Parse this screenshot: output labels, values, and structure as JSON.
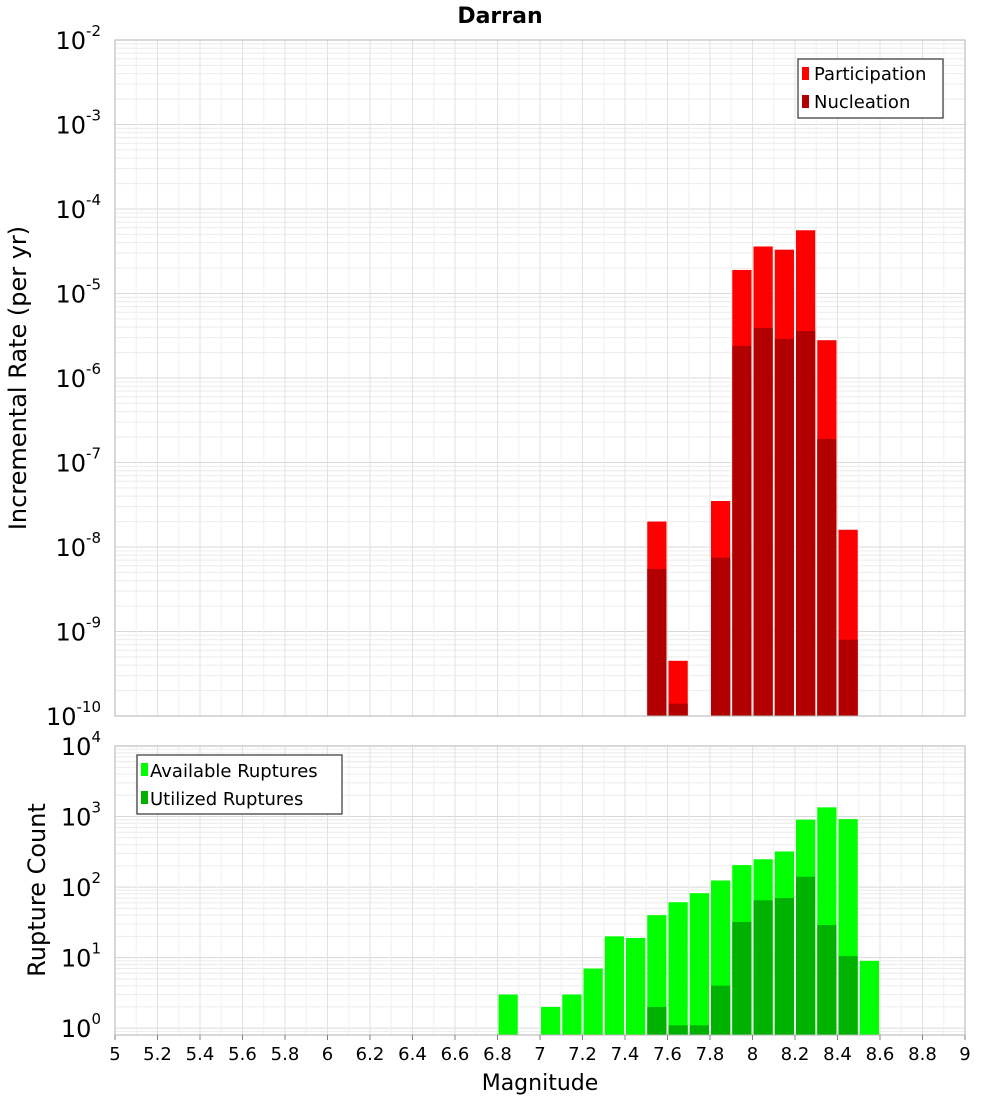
{
  "chart_data": [
    {
      "type": "bar",
      "title": "Darran",
      "ylabel": "Incremental Rate (per yr)",
      "xlabel": "",
      "yscale": "log",
      "ylim": [
        1e-10,
        0.01
      ],
      "xlim": [
        5,
        9
      ],
      "grid": true,
      "legend_position": "top-right",
      "y_ticks": [
        {
          "base": "10",
          "exp": "-2"
        },
        {
          "base": "10",
          "exp": "-3"
        },
        {
          "base": "10",
          "exp": "-4"
        },
        {
          "base": "10",
          "exp": "-5"
        },
        {
          "base": "10",
          "exp": "-6"
        },
        {
          "base": "10",
          "exp": "-7"
        },
        {
          "base": "10",
          "exp": "-8"
        },
        {
          "base": "10",
          "exp": "-9"
        },
        {
          "base": "10",
          "exp": "-10"
        }
      ],
      "bin_centers": [
        7.55,
        7.65,
        7.75,
        7.85,
        7.95,
        8.05,
        8.15,
        8.25,
        8.35,
        8.45
      ],
      "series": [
        {
          "name": "Participation",
          "color": "#ff0000",
          "values": [
            2e-08,
            4.5e-10,
            null,
            3.5e-08,
            1.9e-05,
            3.6e-05,
            3.3e-05,
            5.6e-05,
            2.8e-06,
            1.6e-08
          ]
        },
        {
          "name": "Nucleation",
          "color": "#b20000",
          "values": [
            5.5e-09,
            1.4e-10,
            null,
            7.5e-09,
            2.4e-06,
            3.9e-06,
            2.9e-06,
            3.6e-06,
            1.9e-07,
            8e-10
          ]
        }
      ]
    },
    {
      "type": "bar",
      "title": "",
      "ylabel": "Rupture Count",
      "xlabel": "Magnitude",
      "yscale": "log",
      "ylim": [
        0.8,
        10000
      ],
      "xlim": [
        5,
        9
      ],
      "grid": true,
      "legend_position": "top-left",
      "y_ticks": [
        {
          "base": "10",
          "exp": "4"
        },
        {
          "base": "10",
          "exp": "3"
        },
        {
          "base": "10",
          "exp": "2"
        },
        {
          "base": "10",
          "exp": "1"
        },
        {
          "base": "10",
          "exp": "0"
        }
      ],
      "x_ticks": [
        "5",
        "5.2",
        "5.4",
        "5.6",
        "5.8",
        "6",
        "6.2",
        "6.4",
        "6.6",
        "6.8",
        "7",
        "7.2",
        "7.4",
        "7.6",
        "7.8",
        "8",
        "8.2",
        "8.4",
        "8.6",
        "8.8",
        "9"
      ],
      "bin_centers": [
        6.85,
        6.95,
        7.05,
        7.15,
        7.25,
        7.35,
        7.45,
        7.55,
        7.65,
        7.75,
        7.85,
        7.95,
        8.05,
        8.15,
        8.25,
        8.35,
        8.45,
        8.55
      ],
      "series": [
        {
          "name": "Available Ruptures",
          "color": "#00ff00",
          "values": [
            3,
            null,
            2,
            3,
            7,
            20,
            19,
            40,
            61,
            82,
            124,
            205,
            248,
            320,
            905,
            1350,
            920,
            9
          ]
        },
        {
          "name": "Utilized Ruptures",
          "color": "#00b200",
          "values": [
            null,
            null,
            null,
            null,
            null,
            null,
            null,
            2,
            1.1,
            1.1,
            4,
            32,
            65,
            70,
            140,
            29,
            10.5,
            null
          ]
        }
      ]
    }
  ]
}
